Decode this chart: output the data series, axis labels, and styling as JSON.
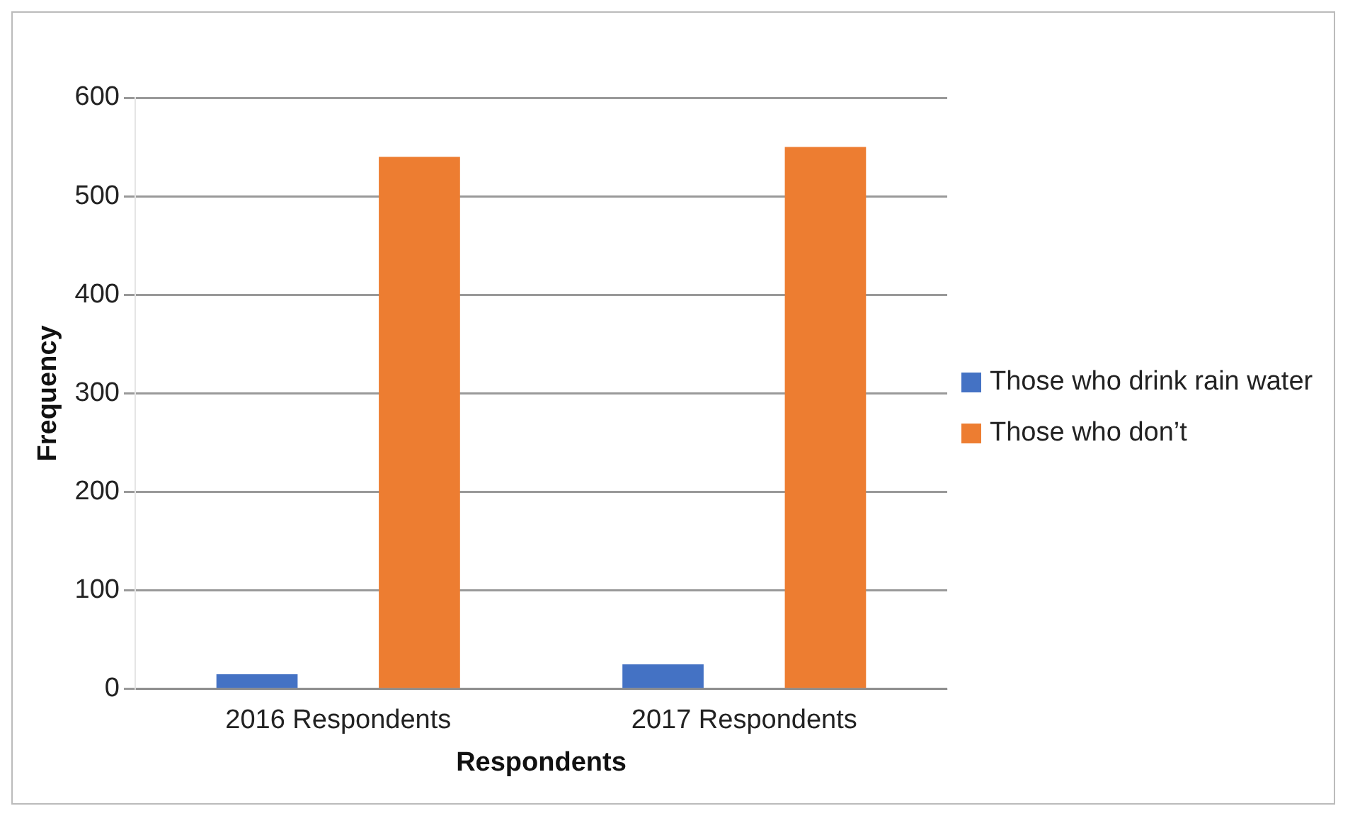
{
  "chart_data": {
    "type": "bar",
    "xlabel": "Respondents",
    "ylabel": "Frequency",
    "categories": [
      "2016 Respondents",
      "2017 Respondents"
    ],
    "series": [
      {
        "name": "Those who drink rain water",
        "color": "#4472c4",
        "values": [
          15,
          25
        ]
      },
      {
        "name": "Those who don’t",
        "color": "#ed7d31",
        "values": [
          540,
          550
        ]
      }
    ],
    "ylim": [
      0,
      600
    ],
    "yticks": [
      0,
      100,
      200,
      300,
      400,
      500,
      600
    ],
    "grid": "y",
    "legend": "right"
  }
}
